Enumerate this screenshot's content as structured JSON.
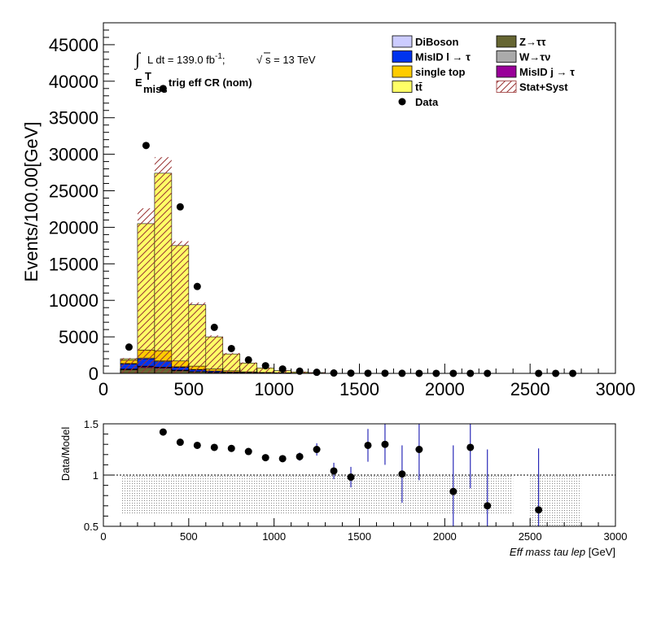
{
  "chart_data": [
    {
      "type": "bar",
      "stacked": true,
      "bin_width": 100,
      "x_edges": [
        100,
        200,
        300,
        400,
        500,
        600,
        700,
        800,
        900,
        1000,
        1100,
        1200,
        1300
      ],
      "ylabel": "Events/100.00[GeV]",
      "xlim": [
        0,
        3000
      ],
      "ylim": [
        0,
        48000
      ],
      "xticks": [
        "0",
        "500",
        "1000",
        "1500",
        "2000",
        "2500",
        "3000"
      ],
      "yticks": [
        "0",
        "5000",
        "10000",
        "15000",
        "20000",
        "25000",
        "30000",
        "35000",
        "40000",
        "45000"
      ],
      "annotations": {
        "lumi_prefix": "∫",
        "lumi_text": "L dt = 139.0 fb",
        "lumi_exp": "-1",
        "lumi_sep": ";",
        "sqrt_sym": "√",
        "energy_text": "s = 13 TeV",
        "region_e": "E",
        "region_sup": "T",
        "region_sub": "miss",
        "region_text": "trig eff CR (nom)"
      },
      "series": [
        {
          "name": "Z→ττ",
          "color": "#666633",
          "values": [
            500,
            800,
            700,
            350,
            200,
            120,
            70,
            40,
            25,
            15,
            8,
            5
          ]
        },
        {
          "name": "MisID j → τ",
          "color": "#990099",
          "values": [
            80,
            150,
            120,
            70,
            40,
            25,
            15,
            10,
            6,
            4,
            2,
            1
          ]
        },
        {
          "name": "W→τν",
          "color": "#aaaaaa",
          "values": [
            20,
            40,
            35,
            20,
            12,
            8,
            5,
            3,
            2,
            1,
            1,
            1
          ]
        },
        {
          "name": "MisID l → τ",
          "color": "#0033ee",
          "values": [
            700,
            1000,
            750,
            400,
            250,
            150,
            90,
            55,
            35,
            20,
            12,
            8
          ]
        },
        {
          "name": "DiBoson",
          "color": "#ccccff",
          "values": [
            50,
            110,
            100,
            60,
            40,
            25,
            15,
            10,
            6,
            4,
            2,
            1
          ]
        },
        {
          "name": "single top",
          "color": "#ffcc00",
          "values": [
            450,
            1100,
            1400,
            800,
            450,
            270,
            160,
            100,
            60,
            40,
            25,
            15
          ]
        },
        {
          "name": "tt̄",
          "color": "#ffff66",
          "values": [
            200,
            17300,
            24300,
            15800,
            8400,
            4400,
            2300,
            1200,
            600,
            300,
            150,
            80
          ]
        }
      ],
      "uncertainty": {
        "name": "Stat+Syst",
        "up": [
          2100,
          22600,
          29600,
          18100,
          9700,
          5200,
          2800,
          1500,
          800,
          420,
          230,
          130
        ],
        "down": [
          1900,
          20400,
          27100,
          17300,
          9200,
          4900,
          2600,
          1350,
          720,
          370,
          190,
          100
        ]
      },
      "data": {
        "name": "Data",
        "x": [
          150,
          250,
          350,
          450,
          550,
          650,
          750,
          850,
          950,
          1050,
          1150,
          1250,
          1350,
          1450,
          1550,
          1650,
          1750,
          1850,
          1950,
          2050,
          2150,
          2250,
          2550,
          2650,
          2750
        ],
        "y": [
          3600,
          31200,
          39000,
          22800,
          11900,
          6300,
          3400,
          1850,
          1050,
          600,
          300,
          150,
          50,
          30,
          20,
          15,
          8,
          5,
          3,
          2,
          2,
          1,
          1,
          1,
          1
        ]
      },
      "legend": {
        "placement": "top-right",
        "columns": [
          [
            {
              "label": "DiBoson",
              "kind": "box",
              "color": "#ccccff"
            },
            {
              "label": "MisID l → τ",
              "kind": "box",
              "color": "#0033ee"
            },
            {
              "label": "single top",
              "kind": "box",
              "color": "#ffcc00"
            },
            {
              "label": "tt̄",
              "kind": "box",
              "color": "#ffff66"
            },
            {
              "label": "Data",
              "kind": "marker",
              "color": "#000000"
            }
          ],
          [
            {
              "label": "Z→ττ",
              "kind": "box",
              "color": "#666633"
            },
            {
              "label": "W→τν",
              "kind": "box",
              "color": "#aaaaaa"
            },
            {
              "label": "MisID j → τ",
              "kind": "box",
              "color": "#990099"
            },
            {
              "label": "Stat+Syst",
              "kind": "hatch",
              "color": "#993333"
            }
          ]
        ]
      }
    },
    {
      "type": "scatter",
      "ylabel": "Data/Model",
      "xlabel_italic": "Eff mass tau lep",
      "xlabel_unit": "[GeV]",
      "xlim": [
        0,
        3000
      ],
      "ylim": [
        0.5,
        1.5
      ],
      "xticks": [
        "0",
        "500",
        "1000",
        "1500",
        "2000",
        "2500",
        "3000"
      ],
      "yticks": [
        "0.5",
        "1",
        "1.5"
      ],
      "reference_line": 1,
      "band": {
        "segments": [
          {
            "x0": 100,
            "x1": 2400,
            "low": 0.62,
            "high": 1.0
          },
          {
            "x0": 2500,
            "x1": 2800,
            "low": 0.5,
            "high": 1.0
          }
        ]
      },
      "points": {
        "x": [
          350,
          450,
          550,
          650,
          750,
          850,
          950,
          1050,
          1150,
          1250,
          1350,
          1450,
          1550,
          1650,
          1750,
          1850,
          2050,
          2150,
          2250,
          2550
        ],
        "y": [
          1.42,
          1.32,
          1.29,
          1.27,
          1.26,
          1.23,
          1.17,
          1.16,
          1.18,
          1.25,
          1.04,
          0.98,
          1.29,
          1.3,
          1.01,
          1.25,
          0.84,
          1.27,
          0.7,
          0.66
        ],
        "err": [
          0.0,
          0.0,
          0.0,
          0.0,
          0.0,
          0.01,
          0.02,
          0.03,
          0.04,
          0.06,
          0.08,
          0.1,
          0.16,
          0.2,
          0.28,
          0.3,
          0.45,
          0.4,
          0.55,
          0.6
        ]
      }
    }
  ]
}
